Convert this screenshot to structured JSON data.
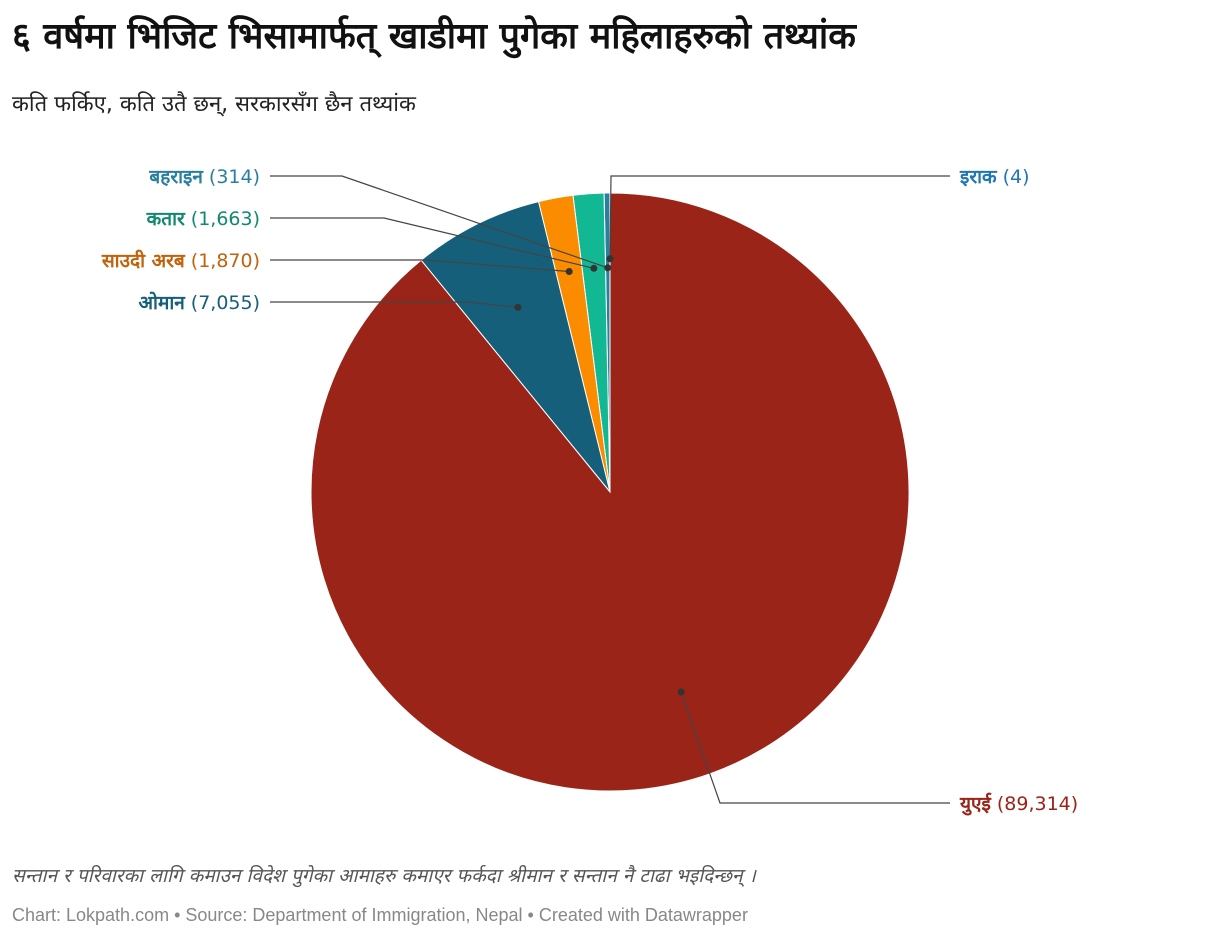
{
  "title": "६ वर्षमा भिजिट भिसामार्फत् खाडीमा पुगेका महिलाहरुको तथ्यांक",
  "subtitle": "कति फर्किए, कति उतै छन्, सरकारसँग छैन तथ्यांक",
  "note": "सन्तान र परिवारका लागि कमाउन विदेश पुगेका आमाहरु कमाएर फर्कदा श्रीमान र सन्तान नै टाढा भइदिन्छन् ।",
  "footer": "Chart: Lokpath.com • Source: Department of Immigration, Nepal • Created with Datawrapper",
  "chart_data": {
    "type": "pie",
    "slices": [
      {
        "label": "इराक",
        "value": 4,
        "value_text": "(4)",
        "color": "#1f77b4"
      },
      {
        "label": "बहराइन",
        "value": 314,
        "value_text": "(314)",
        "color": "#2a7fa0"
      },
      {
        "label": "कतार",
        "value": 1663,
        "value_text": "(1,663)",
        "color": "#12b894"
      },
      {
        "label": "साउदी अरब",
        "value": 1870,
        "value_text": "(1,870)",
        "color": "#fb8c00"
      },
      {
        "label": "ओमान",
        "value": 7055,
        "value_text": "(7,055)",
        "color": "#155f7a"
      },
      {
        "label": "युएई",
        "value": 89314,
        "value_text": "(89,314)",
        "color": "#9a2417"
      }
    ],
    "label_colors": {
      "इराक": "#1f77b4",
      "बहराइन": "#2a7fa0",
      "कतार": "#12896f",
      "साउदी अरब": "#c2620a",
      "ओमान": "#155f7a",
      "युएई": "#9a2417"
    }
  }
}
